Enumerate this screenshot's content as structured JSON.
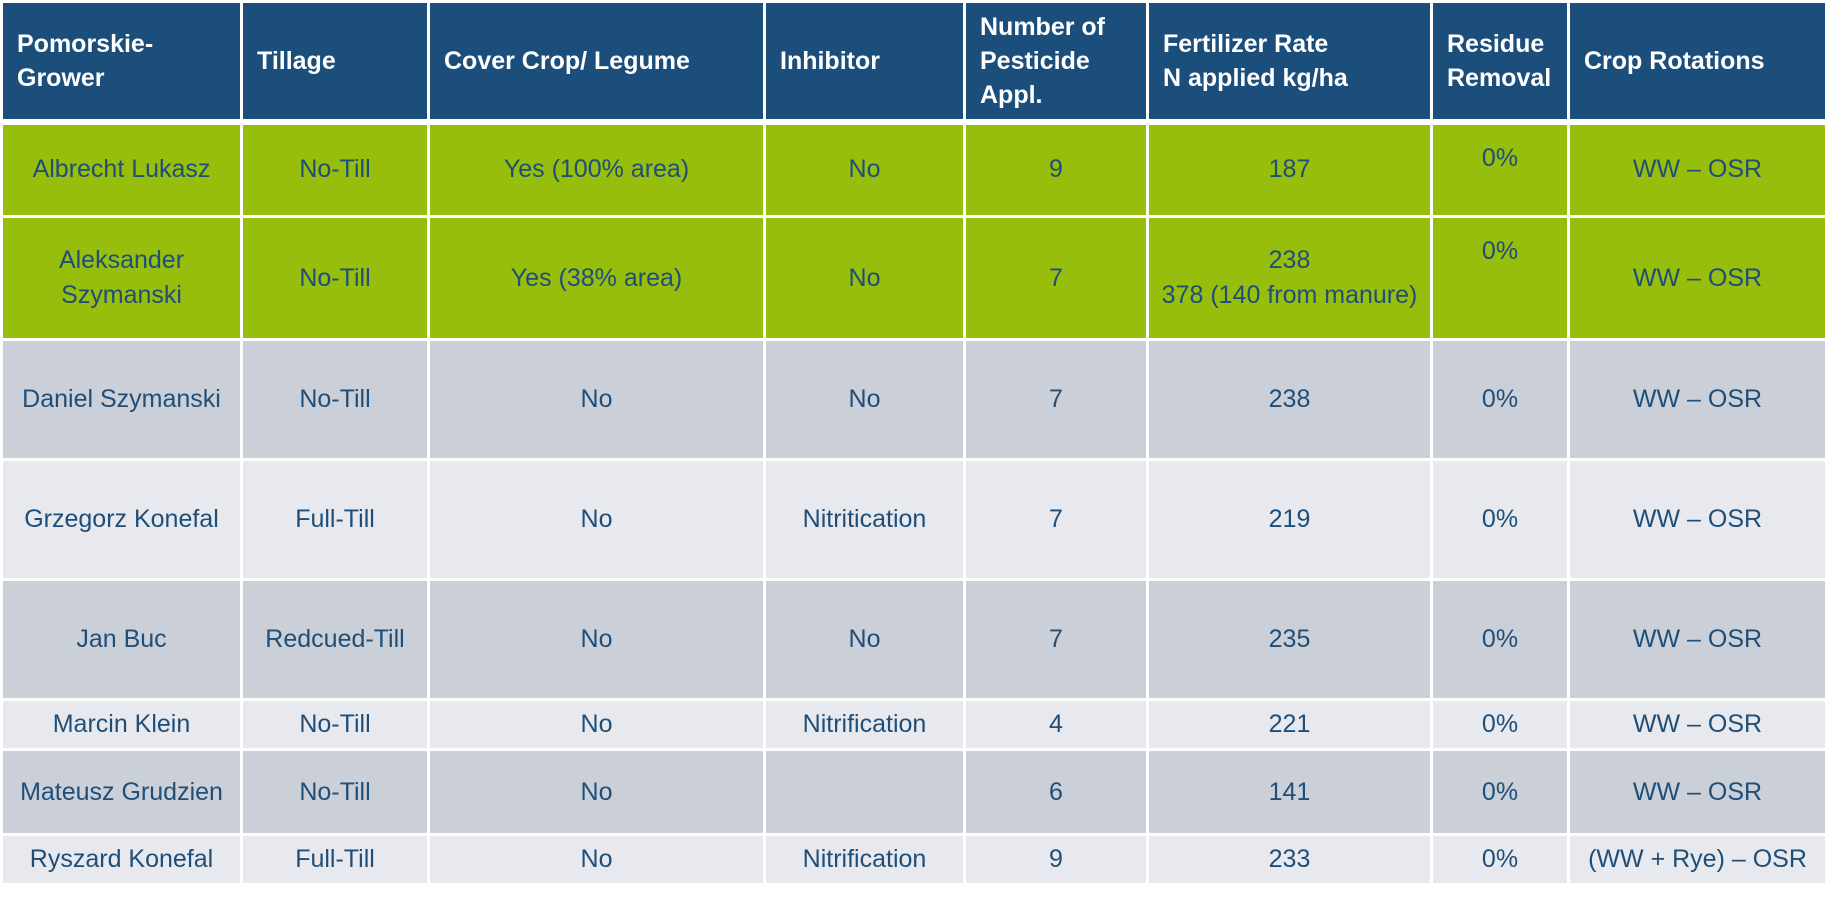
{
  "headers": {
    "grower": "Pomorskie-Grower",
    "tillage": "Tillage",
    "cover_crop": "Cover Crop/ Legume",
    "inhibitor": "Inhibitor",
    "pesticide_line1": "Number of",
    "pesticide_line2": "Pesticide",
    "pesticide_line3": "Appl.",
    "fertilizer_line1": "Fertilizer Rate",
    "fertilizer_line2": "N applied kg/ha",
    "residue_line1": "Residue",
    "residue_line2": "Removal",
    "rotation": "Crop Rotations"
  },
  "rows": [
    {
      "grower": "Albrecht Lukasz",
      "tillage": "No-Till",
      "cover_crop": "Yes (100% area)",
      "inhibitor": "No",
      "pesticide": "9",
      "fertilizer_line1": "187",
      "fertilizer_line2": "",
      "residue": "0%",
      "rotation": "WW – OSR"
    },
    {
      "grower": "Aleksander Szymanski",
      "tillage": "No-Till",
      "cover_crop": "Yes (38% area)",
      "inhibitor": "No",
      "pesticide": "7",
      "fertilizer_line1": "238",
      "fertilizer_line2": "378 (140 from manure)",
      "residue": "0%",
      "rotation": "WW – OSR"
    },
    {
      "grower": "Daniel Szymanski",
      "tillage": "No-Till",
      "cover_crop": "No",
      "inhibitor": "No",
      "pesticide": "7",
      "fertilizer_line1": "238",
      "fertilizer_line2": "",
      "residue": "0%",
      "rotation": "WW – OSR"
    },
    {
      "grower": "Grzegorz Konefal",
      "tillage": "Full-Till",
      "cover_crop": "No",
      "inhibitor": "Nitritication",
      "pesticide": "7",
      "fertilizer_line1": "219",
      "fertilizer_line2": "",
      "residue": "0%",
      "rotation": "WW – OSR"
    },
    {
      "grower": "Jan Buc",
      "tillage": "Redcued-Till",
      "cover_crop": "No",
      "inhibitor": "No",
      "pesticide": "7",
      "fertilizer_line1": "235",
      "fertilizer_line2": "",
      "residue": "0%",
      "rotation": "WW – OSR"
    },
    {
      "grower": "Marcin Klein",
      "tillage": "No-Till",
      "cover_crop": "No",
      "inhibitor": "Nitrification",
      "pesticide": "4",
      "fertilizer_line1": "221",
      "fertilizer_line2": "",
      "residue": "0%",
      "rotation": "WW – OSR"
    },
    {
      "grower": "Mateusz Grudzien",
      "tillage": "No-Till",
      "cover_crop": "No",
      "inhibitor": "",
      "pesticide": "6",
      "fertilizer_line1": "141",
      "fertilizer_line2": "",
      "residue": "0%",
      "rotation": "WW – OSR"
    },
    {
      "grower": "Ryszard Konefal",
      "tillage": "Full-Till",
      "cover_crop": "No",
      "inhibitor": "Nitrification",
      "pesticide": "9",
      "fertilizer_line1": "233",
      "fertilizer_line2": "",
      "residue": "0%",
      "rotation": "(WW + Rye) – OSR"
    }
  ],
  "colors": {
    "header_bg": "#1c4e7c",
    "highlight_row_bg": "#97bd0d",
    "gray_row_bg": "#cbd0d8",
    "light_row_bg": "#e7e9ee",
    "body_text": "#1f4e79"
  }
}
